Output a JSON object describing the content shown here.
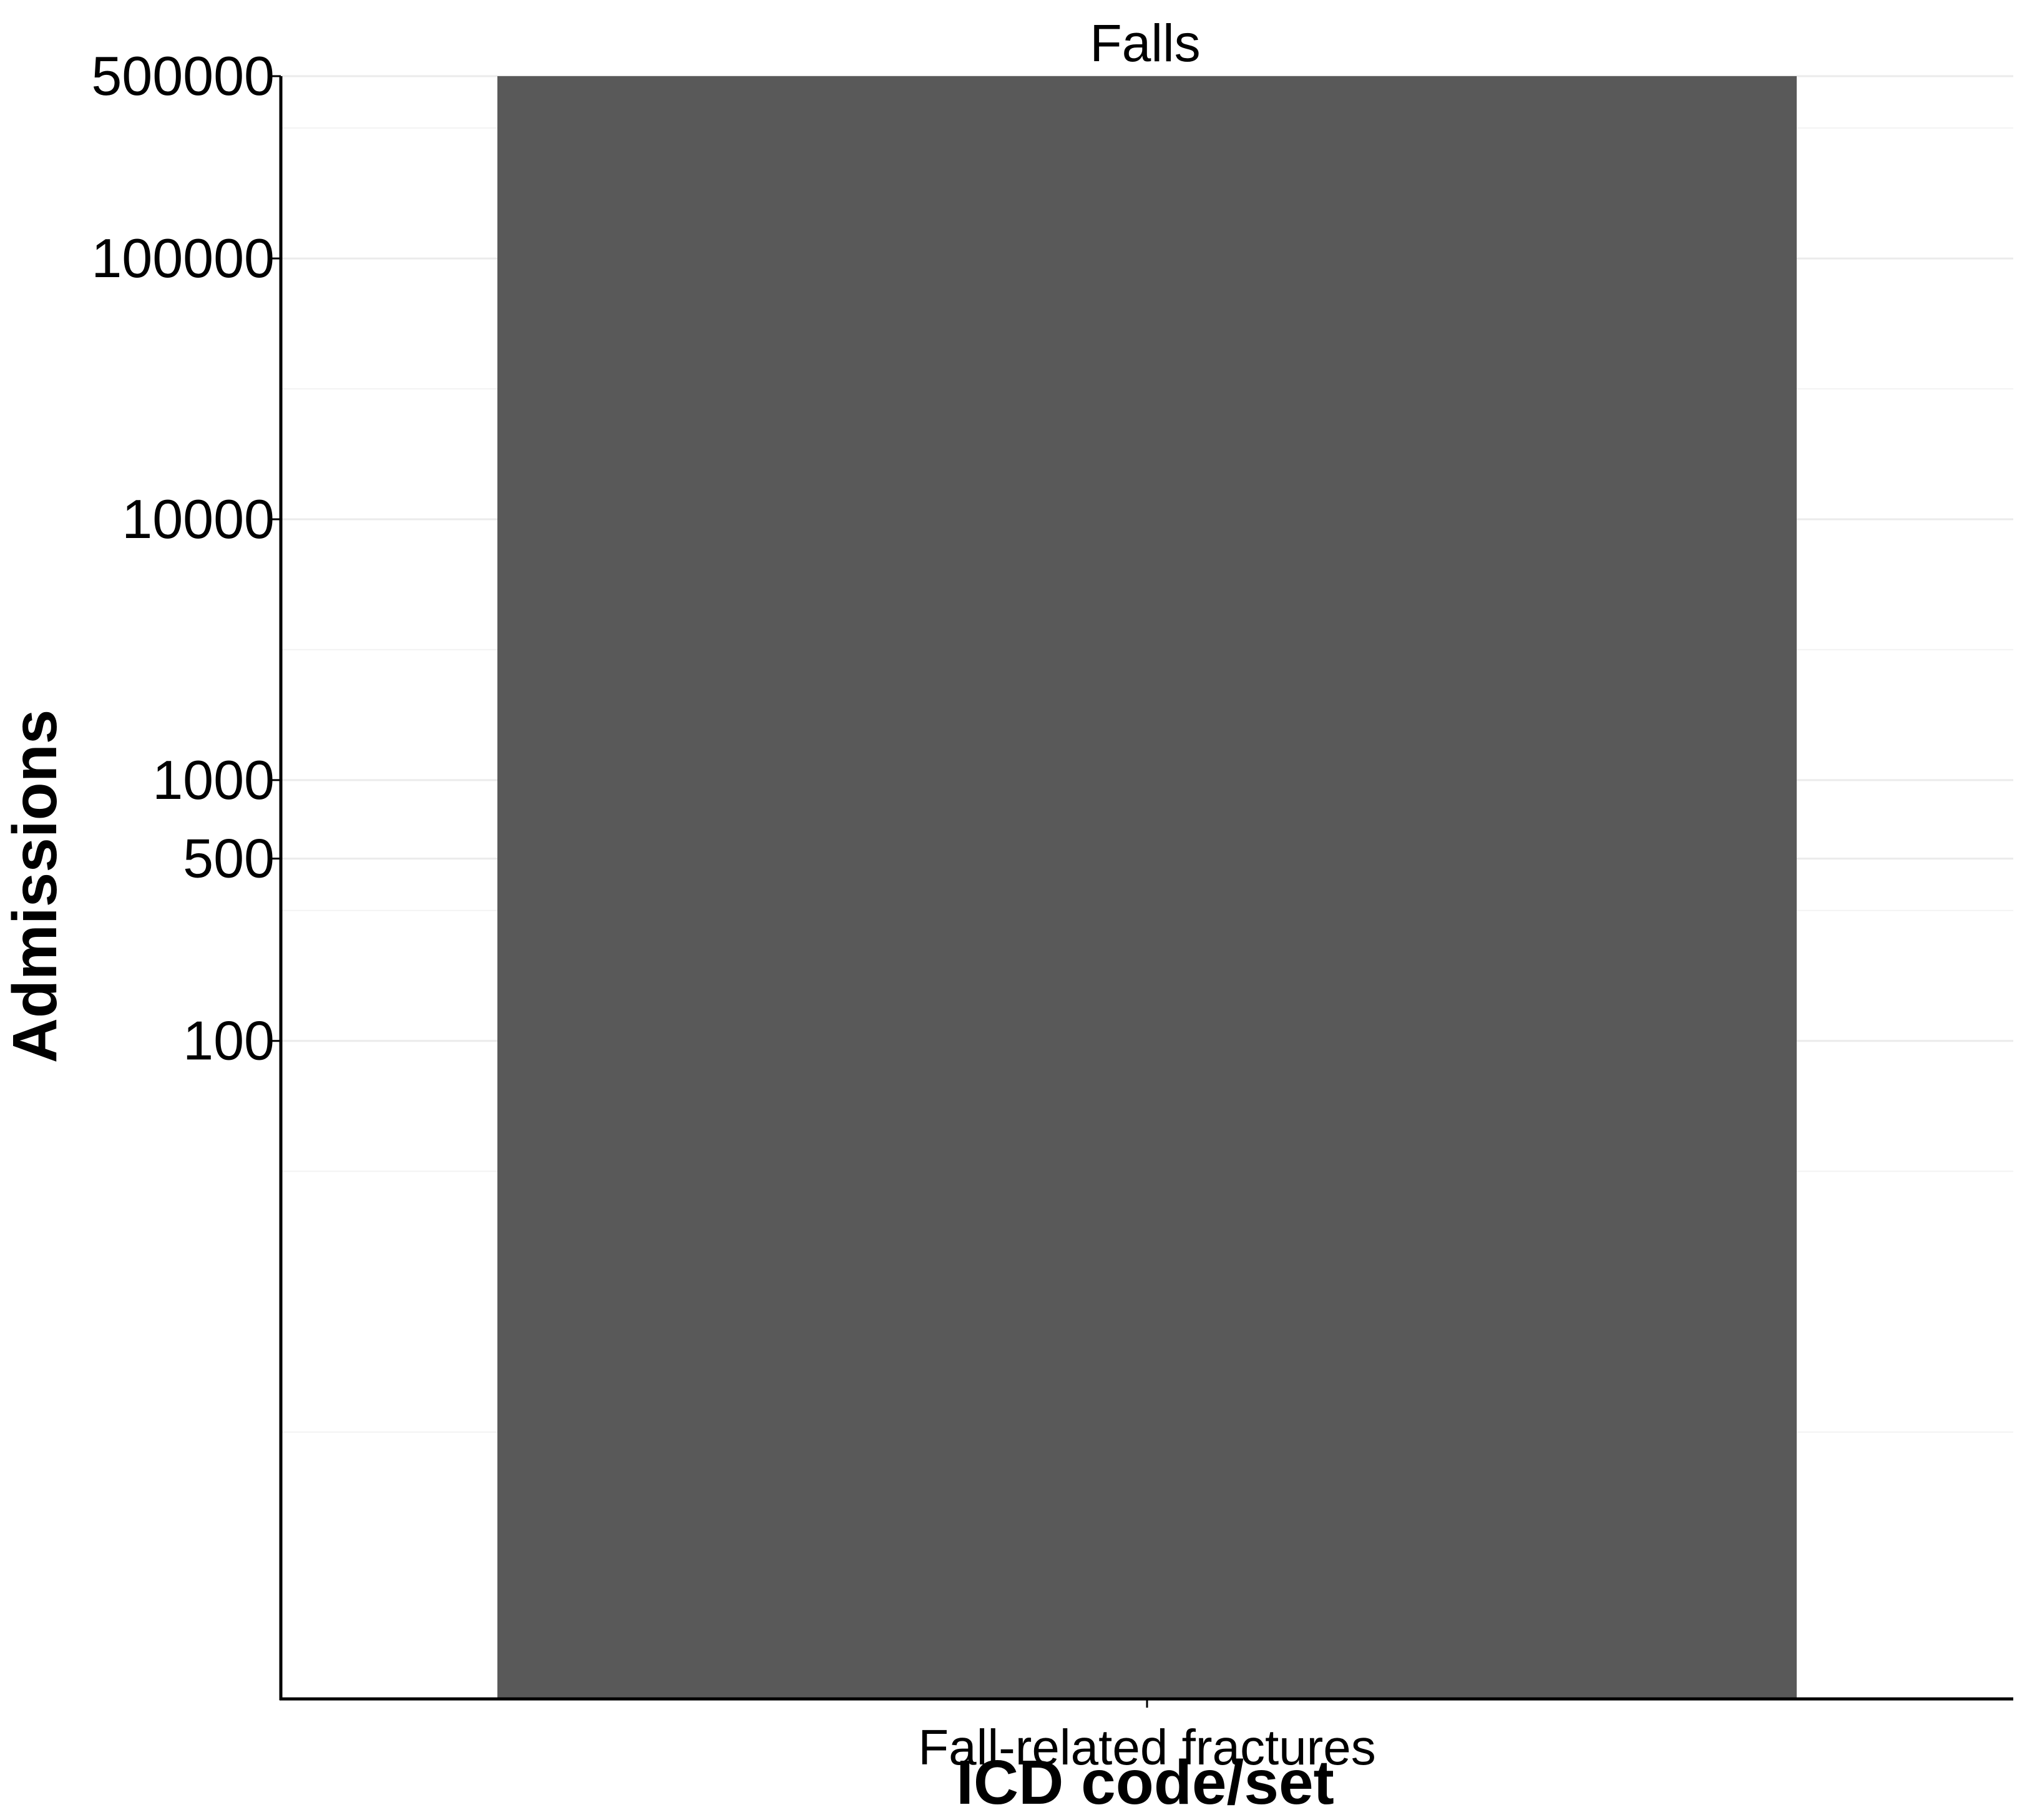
{
  "chart_data": {
    "type": "bar",
    "title": "Falls",
    "categories": [
      "Fall-related fractures"
    ],
    "values": [
      500000
    ],
    "xlabel": "ICD code/set",
    "ylabel": "Admissions",
    "yscale": "log10",
    "ylim": [
      0.3,
      500000
    ],
    "yticks": [
      100,
      500,
      1000,
      10000,
      100000,
      500000
    ],
    "ytick_labels": [
      "100",
      "500",
      "1000",
      "10000",
      "100000",
      "500000"
    ],
    "grid": true,
    "legend": "none",
    "colors": {
      "bar": "#595959",
      "grid": "#ebebeb",
      "axis": "#000000",
      "background": "#ffffff"
    }
  }
}
